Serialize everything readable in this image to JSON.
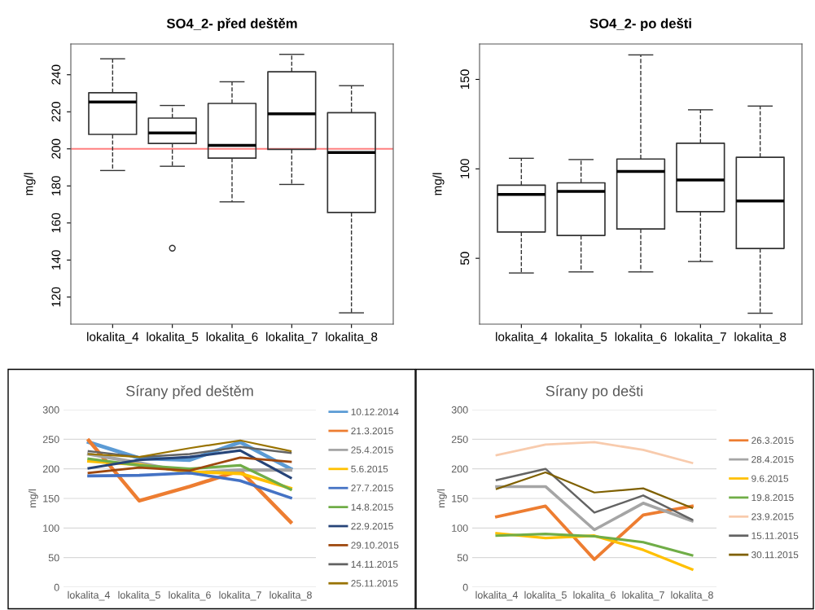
{
  "chart_data": [
    {
      "type": "box",
      "title": "SO4_2- před deštěm",
      "ylabel": "mg/l",
      "categories": [
        "lokalita_4",
        "lokalita_5",
        "lokalita_6",
        "lokalita_7",
        "lokalita_8"
      ],
      "ylim": [
        105.4,
        256.6
      ],
      "yticks": [
        120,
        140,
        160,
        180,
        200,
        220,
        240
      ],
      "grid": false,
      "boxes": [
        {
          "low": 188.3,
          "q1": 207.8,
          "median": 225.3,
          "q3": 230.3,
          "high": 248.6
        },
        {
          "low": 190.6,
          "q1": 202.9,
          "median": 208.6,
          "q3": 216.6,
          "high": 223.4,
          "outliers": [
            146.4
          ]
        },
        {
          "low": 171.4,
          "q1": 195.0,
          "median": 201.9,
          "q3": 224.5,
          "high": 236.2
        },
        {
          "low": 180.8,
          "q1": 199.7,
          "median": 218.9,
          "q3": 241.6,
          "high": 251.0
        },
        {
          "low": 111.5,
          "q1": 165.7,
          "median": 198.0,
          "q3": 219.5,
          "high": 234.1
        }
      ],
      "ref_lines": [
        {
          "axis": "y",
          "value": 200,
          "color": "#ff7f7f"
        }
      ]
    },
    {
      "type": "box",
      "title": "SO4_2- po dešti",
      "ylabel": "mg/l",
      "categories": [
        "lokalita_4",
        "lokalita_5",
        "lokalita_6",
        "lokalita_7",
        "lokalita_8"
      ],
      "ylim": [
        13.2,
        169.8
      ],
      "yticks": [
        50,
        100,
        150
      ],
      "grid": false,
      "boxes": [
        {
          "low": 41.8,
          "q1": 64.7,
          "median": 85.7,
          "q3": 90.9,
          "high": 105.9
        },
        {
          "low": 42.4,
          "q1": 62.8,
          "median": 87.4,
          "q3": 92.2,
          "high": 105.2
        },
        {
          "low": 42.4,
          "q1": 66.4,
          "median": 98.6,
          "q3": 105.5,
          "high": 163.7
        },
        {
          "low": 48.2,
          "q1": 76.1,
          "median": 93.8,
          "q3": 114.3,
          "high": 133.0
        },
        {
          "low": 19.3,
          "q1": 55.5,
          "median": 82.1,
          "q3": 106.5,
          "high": 135.1
        }
      ]
    },
    {
      "type": "line",
      "title": "Sírany před deštěm",
      "ylabel": "mg/l",
      "categories": [
        "lokalita_4",
        "lokalita_5",
        "lokalita_6",
        "lokalita_7",
        "lokalita_8"
      ],
      "ylim": [
        0,
        300
      ],
      "yticks": [
        0,
        50,
        100,
        150,
        200,
        250,
        300
      ],
      "grid": "y",
      "legend": "right",
      "marker": "none",
      "line_style": "solid",
      "series": [
        {
          "name": "10.12.2014",
          "color": "#5b9bd5",
          "values": [
            245,
            218,
            215,
            245,
            200
          ]
        },
        {
          "name": "21.3.2015",
          "color": "#ed7d31",
          "values": [
            248,
            146,
            170,
            197,
            110
          ]
        },
        {
          "name": "25.4.2015",
          "color": "#a5a5a5",
          "values": [
            225,
            210,
            193,
            198,
            198
          ]
        },
        {
          "name": "5.6.2015",
          "color": "#ffc000",
          "values": [
            213,
            207,
            195,
            192,
            167
          ]
        },
        {
          "name": "27.7.2015",
          "color": "#4472c4",
          "values": [
            188,
            189,
            193,
            180,
            151
          ]
        },
        {
          "name": "14.8.2015",
          "color": "#70ad47",
          "values": [
            217,
            206,
            200,
            206,
            165
          ]
        },
        {
          "name": "22.9.2015",
          "color": "#264478",
          "values": [
            201,
            215,
            220,
            231,
            185
          ]
        },
        {
          "name": "29.10.2015",
          "color": "#9e480e",
          "values": [
            193,
            202,
            197,
            219,
            212
          ]
        },
        {
          "name": "14.11.2015",
          "color": "#636363",
          "values": [
            230,
            220,
            225,
            237,
            227
          ]
        },
        {
          "name": "25.11.2015",
          "color": "#997300",
          "values": [
            225,
            220,
            235,
            248,
            230
          ]
        }
      ]
    },
    {
      "type": "line",
      "title": "Sírany po dešti",
      "ylabel": "mg/l",
      "categories": [
        "lokalita_4",
        "lokalita_5",
        "lokalita_6",
        "lokalita_7",
        "lokalita_8"
      ],
      "ylim": [
        0,
        300
      ],
      "yticks": [
        0,
        50,
        100,
        150,
        200,
        250,
        300
      ],
      "grid": "y",
      "legend": "right",
      "marker": "none",
      "line_style": "solid",
      "series": [
        {
          "name": "26.3.2015",
          "color": "#ed7d31",
          "values": [
            119,
            137,
            47,
            122,
            137
          ]
        },
        {
          "name": "28.4.2015",
          "color": "#a5a5a5",
          "values": [
            170,
            170,
            97,
            142,
            112
          ]
        },
        {
          "name": "9.6.2015",
          "color": "#ffc000",
          "values": [
            91,
            83,
            87,
            63,
            30
          ]
        },
        {
          "name": "19.8.2015",
          "color": "#70ad47",
          "values": [
            87,
            90,
            86,
            76,
            54
          ]
        },
        {
          "name": "23.9.2015",
          "color": "#f8cbad",
          "values": [
            223,
            241,
            245,
            232,
            210
          ]
        },
        {
          "name": "15.11.2015",
          "color": "#636363",
          "values": [
            181,
            200,
            126,
            155,
            114
          ]
        },
        {
          "name": "30.11.2015",
          "color": "#7f6000",
          "values": [
            166,
            194,
            160,
            167,
            134
          ]
        }
      ]
    }
  ]
}
